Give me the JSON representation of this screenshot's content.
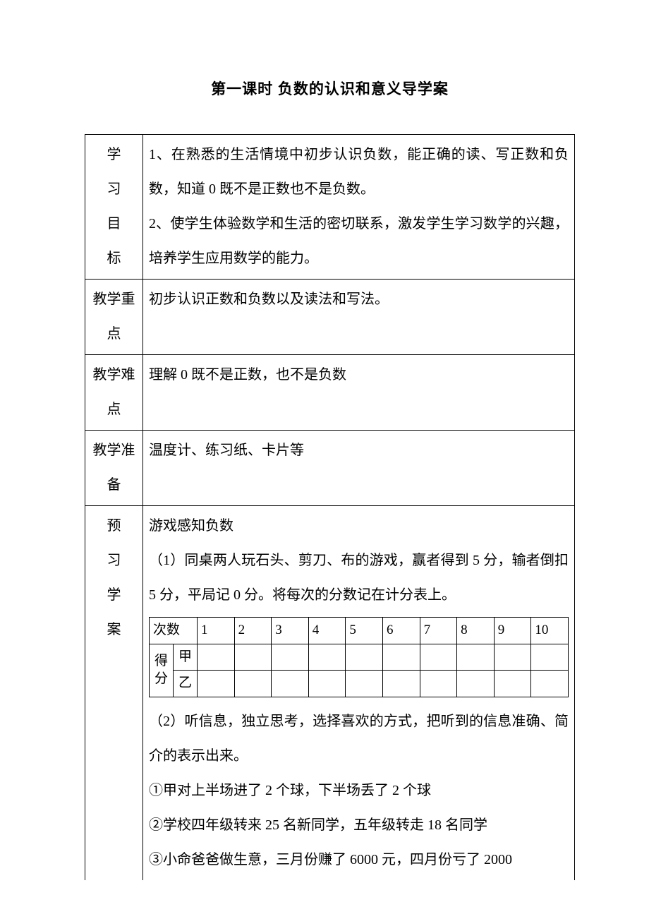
{
  "title": "第一课时 负数的认识和意义导学案",
  "rows": {
    "objectives": {
      "label": [
        "学",
        "习",
        "目",
        "标"
      ],
      "lines": [
        "1、在熟悉的生活情境中初步认识负数，能正确的读、写正数和负数，知道 0 既不是正数也不是负数。",
        "2、使学生体验数学和生活的密切联系，激发学生学习数学的兴趣，培养学生应用数学的能力。"
      ]
    },
    "keypoint": {
      "label": [
        "教学重",
        "点"
      ],
      "text": "初步认识正数和负数以及读法和写法。"
    },
    "difficulty": {
      "label": [
        "教学难",
        "点"
      ],
      "text": "理解 0 既不是正数，也不是负数"
    },
    "prep": {
      "label": [
        "教学准",
        "备"
      ],
      "text": "温度计、练习纸、卡片等"
    },
    "preview": {
      "label": [
        "预",
        "习",
        "学",
        "案"
      ],
      "before": [
        "游戏感知负数",
        "（1）同桌两人玩石头、剪刀、布的游戏，赢者得到 5 分，输者倒扣 5 分，平局记 0 分。将每次的分数记在计分表上。"
      ],
      "table": {
        "header_first": "次数",
        "cols": [
          "1",
          "2",
          "3",
          "4",
          "5",
          "6",
          "7",
          "8",
          "9",
          "10"
        ],
        "row_group": "得分",
        "row_a": "甲",
        "row_b": "乙"
      },
      "after": [
        "（2）听信息，独立思考，选择喜欢的方式，把听到的信息准确、简介的表示出来。",
        "①甲对上半场进了 2 个球，下半场丢了 2 个球",
        "②学校四年级转来 25 名新同学，五年级转走 18 名同学",
        "③小命爸爸做生意，三月份赚了 6000 元，四月份亏了 2000"
      ]
    }
  }
}
